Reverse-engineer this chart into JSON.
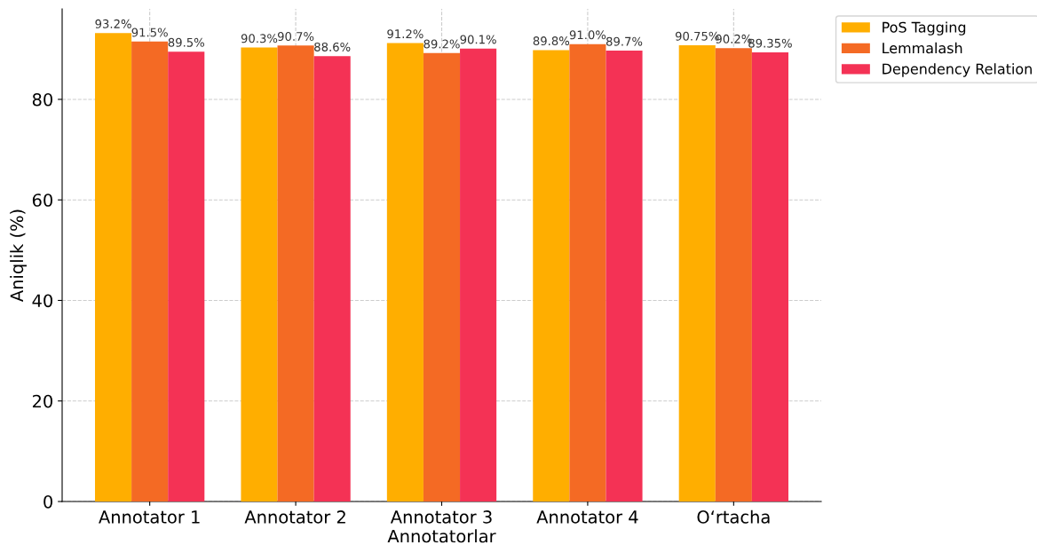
{
  "chart_data": {
    "type": "bar",
    "xlabel": "Annotatorlar",
    "ylabel": "Aniqlik (%)",
    "categories": [
      "Annotator 1",
      "Annotator 2",
      "Annotator 3",
      "Annotator 4",
      "O‘rtacha"
    ],
    "series": [
      {
        "name": "PoS Tagging",
        "color": "#ffae00",
        "values": [
          93.2,
          90.3,
          91.2,
          89.8,
          90.75
        ],
        "value_labels": [
          "93.2%",
          "90.3%",
          "91.2%",
          "89.8%",
          "90.75%"
        ]
      },
      {
        "name": "Lemmalash",
        "color": "#f46a24",
        "values": [
          91.5,
          90.7,
          89.2,
          91.0,
          90.2
        ],
        "value_labels": [
          "91.5%",
          "90.7%",
          "89.2%",
          "91.0%",
          "90.2%"
        ]
      },
      {
        "name": "Dependency Relation",
        "color": "#f43255",
        "values": [
          89.5,
          88.6,
          90.1,
          89.7,
          89.35
        ],
        "value_labels": [
          "89.5%",
          "88.6%",
          "90.1%",
          "89.7%",
          "89.35%"
        ]
      }
    ],
    "ylim": [
      0,
      98
    ],
    "yticks": [
      0,
      20,
      40,
      60,
      80
    ],
    "grid": true,
    "legend": "top right"
  }
}
